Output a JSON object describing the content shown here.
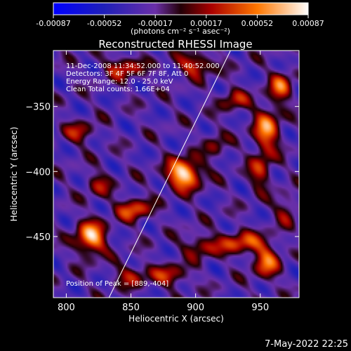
{
  "chart_data": {
    "type": "heatmap",
    "title": "Reconstructed RHESSI Image",
    "xlabel": "Heliocentric X (arcsec)",
    "ylabel": "Heliocentric Y (arcsec)",
    "xlim": [
      790,
      980
    ],
    "ylim": [
      -497,
      -307
    ],
    "x_ticks": [
      800,
      850,
      900,
      950
    ],
    "y_ticks": [
      -350,
      -400,
      -450
    ],
    "colorbar": {
      "ticks": [
        "-0.00087",
        "-0.00052",
        "-0.00017",
        "0.00017",
        "0.00052",
        "0.00087"
      ],
      "unit_label": "(photons cm⁻² s⁻¹ asec⁻²)",
      "range": [
        -0.00087,
        0.00087
      ]
    },
    "annotations": [
      "11-Dec-2008 11:34:52.000 to 11:40:52.000",
      "Detectors: 3F 4F 5F 6F 7F 8F, Att 0",
      "Energy Range: 12.0 - 25.0 keV",
      "Clean     Total counts: 1.66E+04"
    ],
    "peak_label": "Position of Peak = [889,-404]",
    "peak": {
      "x": 889,
      "y": -404
    },
    "limb_line": {
      "points": [
        [
          833,
          -497
        ],
        [
          927,
          -307
        ]
      ]
    },
    "sources": [
      {
        "x": 891,
        "y": -402,
        "amp": 1.0,
        "sx": 9,
        "sy": 8
      },
      {
        "x": 819,
        "y": -451,
        "amp": 0.85,
        "sx": 8,
        "sy": 9
      },
      {
        "x": 852,
        "y": -429,
        "amp": 0.6,
        "sx": 9,
        "sy": 6
      },
      {
        "x": 955,
        "y": -368,
        "amp": 0.7,
        "sx": 7,
        "sy": 12
      },
      {
        "x": 966,
        "y": -335,
        "amp": 0.6,
        "sx": 6,
        "sy": 8
      },
      {
        "x": 900,
        "y": -318,
        "amp": 0.55,
        "sx": 10,
        "sy": 6
      },
      {
        "x": 845,
        "y": -320,
        "amp": 0.5,
        "sx": 10,
        "sy": 6
      },
      {
        "x": 930,
        "y": -345,
        "amp": 0.4,
        "sx": 8,
        "sy": 6
      },
      {
        "x": 935,
        "y": -455,
        "amp": 0.55,
        "sx": 14,
        "sy": 6
      },
      {
        "x": 955,
        "y": -470,
        "amp": 0.6,
        "sx": 7,
        "sy": 9
      },
      {
        "x": 903,
        "y": -458,
        "amp": 0.4,
        "sx": 9,
        "sy": 6
      },
      {
        "x": 950,
        "y": -400,
        "amp": 0.45,
        "sx": 6,
        "sy": 10
      },
      {
        "x": 810,
        "y": -370,
        "amp": 0.4,
        "sx": 8,
        "sy": 6
      },
      {
        "x": 825,
        "y": -410,
        "amp": 0.35,
        "sx": 7,
        "sy": 7
      },
      {
        "x": 880,
        "y": -480,
        "amp": 0.45,
        "sx": 10,
        "sy": 6
      },
      {
        "x": 850,
        "y": -480,
        "amp": 0.4,
        "sx": 9,
        "sy": 6
      },
      {
        "x": 915,
        "y": -380,
        "amp": 0.3,
        "sx": 6,
        "sy": 8
      },
      {
        "x": 970,
        "y": -430,
        "amp": 0.35,
        "sx": 6,
        "sy": 8
      }
    ]
  },
  "footer": {
    "timestamp": "7-May-2022 22:25"
  }
}
